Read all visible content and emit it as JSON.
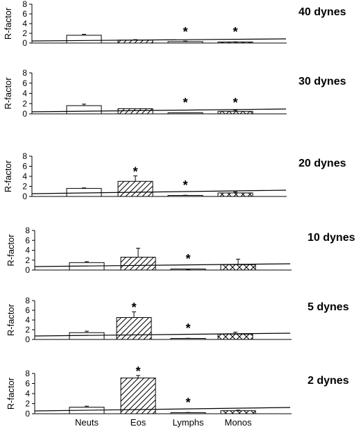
{
  "chart_data": [
    {
      "type": "bar",
      "title": "40 dynes",
      "ylabel": "R-factor",
      "ylim": [
        0,
        8
      ],
      "yticks": [
        "0",
        "2",
        "4",
        "6",
        "8"
      ],
      "categories": [
        "Neuts",
        "Eos",
        "Lymphs",
        "Monos"
      ],
      "values": [
        1.6,
        0.6,
        0.3,
        0.2
      ],
      "errors": [
        0.2,
        0.1,
        0.1,
        0.05
      ],
      "significant": [
        false,
        false,
        true,
        true
      ],
      "reference_line": 1,
      "show_category_labels": false
    },
    {
      "type": "bar",
      "title": "30 dynes",
      "ylabel": "R-factor",
      "ylim": [
        0,
        8
      ],
      "yticks": [
        "0",
        "2",
        "4",
        "6",
        "8"
      ],
      "categories": [
        "Neuts",
        "Eos",
        "Lymphs",
        "Monos"
      ],
      "values": [
        1.6,
        1.0,
        0.15,
        0.5
      ],
      "errors": [
        0.3,
        0.0,
        0.05,
        0.2
      ],
      "significant": [
        false,
        false,
        true,
        true
      ],
      "reference_line": 1,
      "show_category_labels": false
    },
    {
      "type": "bar",
      "title": "20 dynes",
      "ylabel": "R-factor",
      "ylim": [
        0,
        8
      ],
      "yticks": [
        "0",
        "2",
        "4",
        "6",
        "8"
      ],
      "categories": [
        "Neuts",
        "Eos",
        "Lymphs",
        "Monos"
      ],
      "values": [
        1.6,
        3.0,
        0.2,
        0.7
      ],
      "errors": [
        0.1,
        1.1,
        0.05,
        0.2
      ],
      "significant": [
        false,
        true,
        true,
        false
      ],
      "reference_line": 1,
      "show_category_labels": false
    },
    {
      "type": "bar",
      "title": "10 dynes",
      "ylabel": "R-factor",
      "ylim": [
        0,
        8
      ],
      "yticks": [
        "0",
        "2",
        "4",
        "6",
        "8"
      ],
      "categories": [
        "Neuts",
        "Eos",
        "Lymphs",
        "Monos"
      ],
      "values": [
        1.5,
        2.6,
        0.1,
        1.1
      ],
      "errors": [
        0.2,
        1.8,
        0.05,
        1.1
      ],
      "significant": [
        false,
        false,
        true,
        false
      ],
      "reference_line": 1,
      "show_category_labels": false
    },
    {
      "type": "bar",
      "title": "5 dynes",
      "ylabel": "R-factor",
      "ylim": [
        0,
        8
      ],
      "yticks": [
        "0",
        "2",
        "4",
        "6",
        "8"
      ],
      "categories": [
        "Neuts",
        "Eos",
        "Lymphs",
        "Monos"
      ],
      "values": [
        1.4,
        4.5,
        0.2,
        1.1
      ],
      "errors": [
        0.3,
        1.2,
        0.05,
        0.4
      ],
      "significant": [
        false,
        true,
        true,
        false
      ],
      "reference_line": 1,
      "show_category_labels": false
    },
    {
      "type": "bar",
      "title": "2 dynes",
      "ylabel": "R-factor",
      "ylim": [
        0,
        8
      ],
      "yticks": [
        "0",
        "2",
        "4",
        "6",
        "8"
      ],
      "categories": [
        "Neuts",
        "Eos",
        "Lymphs",
        "Monos"
      ],
      "values": [
        1.3,
        7.1,
        0.2,
        0.6
      ],
      "errors": [
        0.2,
        0.5,
        0.05,
        0.1
      ],
      "significant": [
        false,
        true,
        true,
        false
      ],
      "reference_line": 1,
      "show_category_labels": true
    }
  ],
  "styles": {
    "bar_patterns": [
      "none",
      "diagonal-hatch",
      "solid-thin",
      "cross-hatch"
    ],
    "line_color": "#000000",
    "background": "#ffffff"
  }
}
